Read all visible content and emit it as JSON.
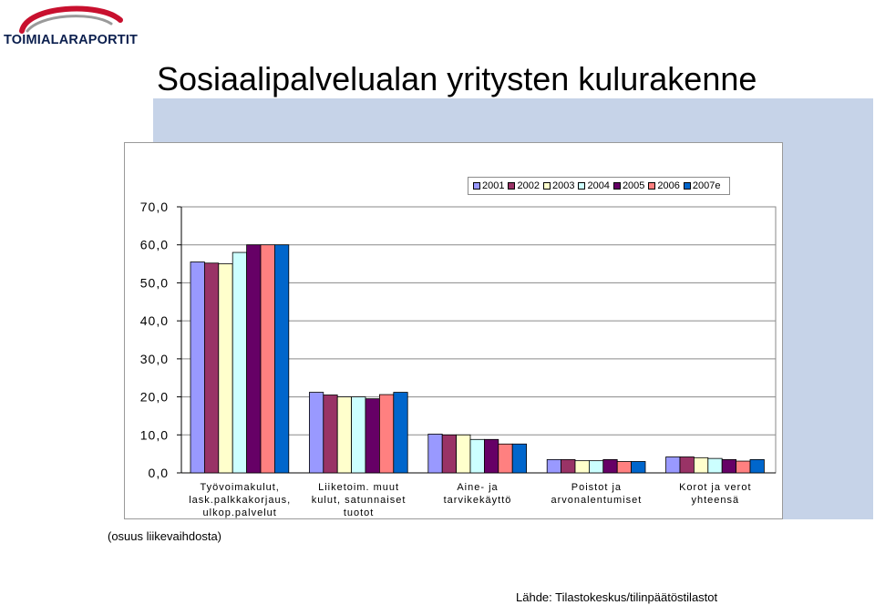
{
  "brand": {
    "name": "TOIMIALARAPORTIT",
    "arc_color": "#c8102e",
    "text_color": "#0b1f4e"
  },
  "page": {
    "title": "Sosiaalipalvelualan yritysten kulurakenne",
    "note": "(osuus liikevaihdosta)",
    "source": "Lähde: Tilastokeskus/tilinpäätöstilastot"
  },
  "chart_data": {
    "type": "bar",
    "ylim": [
      0,
      70
    ],
    "yticks": [
      "0,0",
      "10,0",
      "20,0",
      "30,0",
      "40,0",
      "50,0",
      "60,0",
      "70,0"
    ],
    "grid": true,
    "legend_position": "top-right",
    "categories": [
      "Työvoimakulut,\nlask.palkkakorjaus,\nulkop.palvelut",
      "Liiketoim. muut\nkulut, satunnaiset\ntuotot",
      "Aine- ja\ntarvikekäyttö",
      "Poistot ja\narvonalentumiset",
      "Korot ja verot\nyhteensä"
    ],
    "series": [
      {
        "name": "2001",
        "color": "#9999ff",
        "values": [
          55.5,
          21.2,
          10.2,
          3.5,
          4.2
        ]
      },
      {
        "name": "2002",
        "color": "#993366",
        "values": [
          55.2,
          20.5,
          10.0,
          3.5,
          4.2
        ]
      },
      {
        "name": "2003",
        "color": "#ffffcc",
        "values": [
          55.0,
          20.0,
          10.0,
          3.2,
          4.0
        ]
      },
      {
        "name": "2004",
        "color": "#ccffff",
        "values": [
          58.0,
          20.0,
          8.8,
          3.2,
          3.8
        ]
      },
      {
        "name": "2005",
        "color": "#660066",
        "values": [
          60.0,
          19.5,
          8.8,
          3.5,
          3.5
        ]
      },
      {
        "name": "2006",
        "color": "#ff8080",
        "values": [
          60.0,
          20.6,
          7.6,
          3.0,
          3.1
        ]
      },
      {
        "name": "2007e",
        "color": "#0066cc",
        "values": [
          60.0,
          21.2,
          7.6,
          3.0,
          3.5
        ]
      }
    ]
  }
}
